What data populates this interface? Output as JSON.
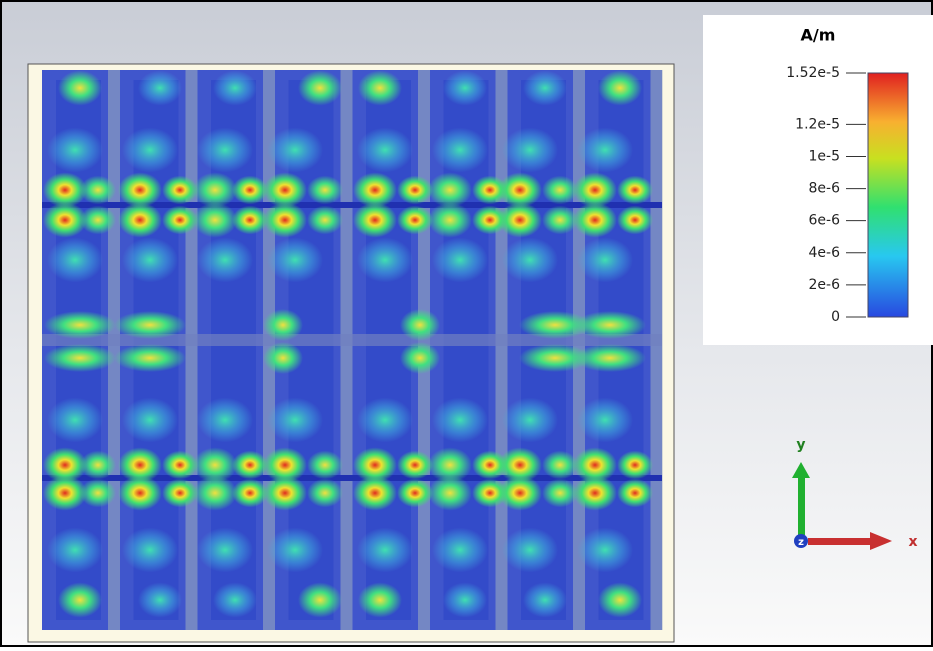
{
  "colorbar": {
    "unit": "A/m",
    "ticks": [
      {
        "value": 1.52e-05,
        "label": "1.52e-5"
      },
      {
        "value": 1.2e-05,
        "label": "1.2e-5"
      },
      {
        "value": 1e-05,
        "label": "1e-5"
      },
      {
        "value": 8e-06,
        "label": "8e-6"
      },
      {
        "value": 6e-06,
        "label": "6e-6"
      },
      {
        "value": 4e-06,
        "label": "4e-6"
      },
      {
        "value": 2e-06,
        "label": "2e-6"
      },
      0
    ]
  },
  "axes": {
    "y": "y",
    "z": "z",
    "x": "x"
  }
}
